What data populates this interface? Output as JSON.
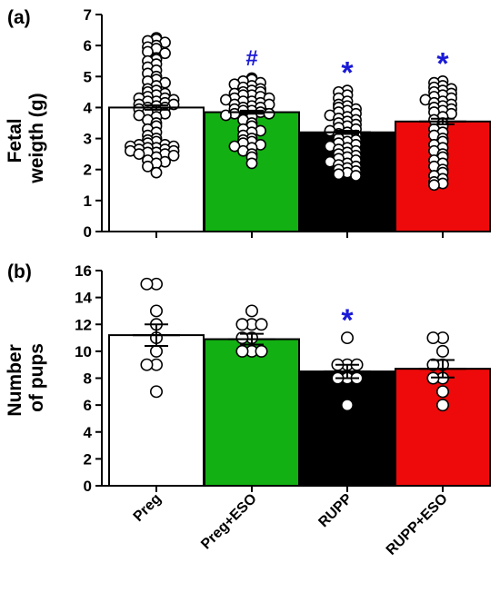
{
  "categories": [
    "Preg",
    "Preg+ESO",
    "RUPP",
    "RUPP+ESO"
  ],
  "colors": {
    "Preg": "#ffffff",
    "Preg+ESO": "#12b012",
    "RUPP": "#000000",
    "RUPP+ESO": "#ee0a0a",
    "significance": "#1a1ad6"
  },
  "chart_data": [
    {
      "type": "bar",
      "panel_label": "(a)",
      "ylabel_lines": [
        "Fetal",
        "weigth (g)"
      ],
      "ylim": [
        0,
        7
      ],
      "yticks": [
        0,
        1,
        2,
        3,
        4,
        5,
        6,
        7
      ],
      "categories": [
        "Preg",
        "Preg+ESO",
        "RUPP",
        "RUPP+ESO"
      ],
      "values": [
        4.0,
        3.85,
        3.2,
        3.55
      ],
      "sem": [
        0.07,
        0.05,
        0.05,
        0.09
      ],
      "significance": [
        "",
        "#",
        "*",
        "*"
      ],
      "points": [
        [
          6.25,
          6.2,
          6.15,
          6.1,
          6.0,
          5.95,
          5.9,
          5.8,
          5.75,
          5.6,
          5.55,
          5.5,
          5.4,
          5.3,
          5.2,
          5.1,
          5.0,
          4.9,
          4.85,
          4.8,
          4.7,
          4.6,
          4.55,
          4.5,
          4.45,
          4.4,
          4.35,
          4.3,
          4.3,
          4.25,
          4.2,
          4.2,
          4.15,
          4.1,
          4.1,
          4.05,
          4.0,
          4.0,
          3.95,
          3.9,
          3.85,
          3.8,
          3.75,
          3.7,
          3.6,
          3.5,
          3.4,
          3.3,
          3.2,
          3.1,
          3.0,
          2.95,
          2.9,
          2.85,
          2.8,
          2.8,
          2.75,
          2.75,
          2.7,
          2.7,
          2.65,
          2.65,
          2.6,
          2.6,
          2.55,
          2.55,
          2.5,
          2.5,
          2.45,
          2.4,
          2.3,
          2.25,
          2.2,
          2.1,
          1.9
        ],
        [
          4.95,
          4.9,
          4.85,
          4.8,
          4.75,
          4.7,
          4.65,
          4.6,
          4.55,
          4.5,
          4.5,
          4.45,
          4.4,
          4.4,
          4.35,
          4.3,
          4.3,
          4.25,
          4.2,
          4.2,
          4.15,
          4.1,
          4.1,
          4.05,
          4.0,
          4.0,
          3.95,
          3.9,
          3.9,
          3.85,
          3.8,
          3.8,
          3.75,
          3.7,
          3.6,
          3.5,
          3.4,
          3.3,
          3.25,
          3.2,
          3.1,
          3.0,
          2.95,
          2.9,
          2.85,
          2.8,
          2.75,
          2.7,
          2.6,
          2.5,
          2.4,
          2.2
        ],
        [
          4.55,
          4.5,
          4.4,
          4.3,
          4.2,
          4.1,
          4.05,
          4.0,
          3.95,
          3.9,
          3.85,
          3.8,
          3.75,
          3.7,
          3.65,
          3.6,
          3.55,
          3.5,
          3.45,
          3.4,
          3.35,
          3.3,
          3.25,
          3.2,
          3.15,
          3.1,
          3.05,
          3.0,
          2.95,
          2.9,
          2.85,
          2.8,
          2.75,
          2.7,
          2.65,
          2.6,
          2.55,
          2.5,
          2.45,
          2.4,
          2.35,
          2.3,
          2.25,
          2.2,
          2.15,
          2.1,
          2.05,
          2.0,
          1.95,
          1.9,
          1.85,
          1.8
        ],
        [
          4.85,
          4.8,
          4.7,
          4.65,
          4.6,
          4.55,
          4.5,
          4.45,
          4.4,
          4.35,
          4.3,
          4.25,
          4.2,
          4.15,
          4.1,
          4.05,
          4.0,
          3.95,
          3.9,
          3.85,
          3.8,
          3.7,
          3.6,
          3.5,
          3.4,
          3.3,
          3.2,
          3.1,
          3.0,
          2.9,
          2.8,
          2.7,
          2.6,
          2.5,
          2.4,
          2.3,
          2.2,
          2.1,
          2.0,
          1.9,
          1.8,
          1.7,
          1.6,
          1.55,
          1.5
        ]
      ]
    },
    {
      "type": "bar",
      "panel_label": "(b)",
      "ylabel_lines": [
        "Number",
        "of pups"
      ],
      "ylim": [
        0,
        16
      ],
      "yticks": [
        0,
        2,
        4,
        6,
        8,
        10,
        12,
        14,
        16
      ],
      "categories": [
        "Preg",
        "Preg+ESO",
        "RUPP",
        "RUPP+ESO"
      ],
      "values": [
        11.2,
        10.9,
        8.5,
        8.7
      ],
      "sem": [
        0.8,
        0.4,
        0.5,
        0.65
      ],
      "significance": [
        "",
        "",
        "*",
        ""
      ],
      "points": [
        [
          15,
          15,
          13,
          12,
          11,
          10,
          9,
          9,
          7
        ],
        [
          13,
          12,
          12,
          12,
          11,
          11,
          10,
          10,
          10
        ],
        [
          11,
          9,
          9,
          9,
          8,
          8,
          8,
          6
        ],
        [
          11,
          11,
          10,
          9,
          9,
          8,
          8,
          7,
          6
        ]
      ]
    }
  ]
}
